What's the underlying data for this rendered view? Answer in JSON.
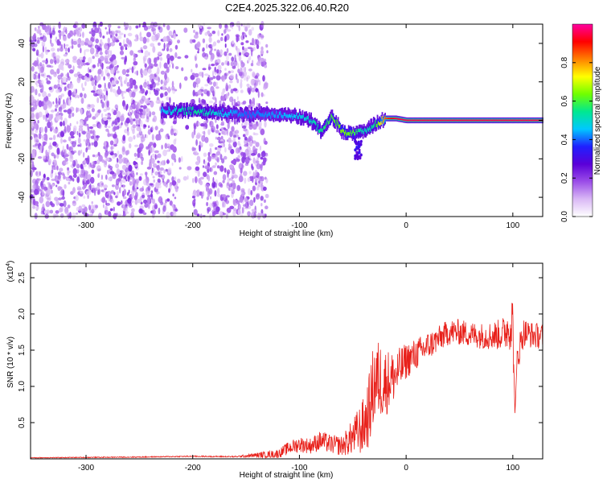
{
  "page_title": "C2E4.2025.322.06.40.R20",
  "chart_data": [
    {
      "type": "heatmap",
      "title": "C2E4.2025.322.06.40.R20",
      "xlabel": "Height of straight line (km)",
      "ylabel": "Frequency (Hz)",
      "xlim": [
        -352,
        128
      ],
      "ylim": [
        -50,
        50
      ],
      "xticks": [
        -300,
        -200,
        -100,
        0,
        100
      ],
      "yticks": [
        -40,
        -20,
        0,
        20,
        40
      ],
      "xtick_labels": [
        "-300",
        "-200",
        "-100",
        "0",
        "100"
      ],
      "ytick_labels": [
        "-40",
        "-20",
        "0",
        "20",
        "40"
      ],
      "grid": false,
      "colorbar": {
        "label": "Normalized spectral amplitude",
        "range": [
          0,
          1
        ],
        "ticks": [
          0.0,
          0.2,
          0.4,
          0.6,
          0.8
        ],
        "tick_labels": [
          "0.0",
          "0.2",
          "0.4",
          "0.6",
          "0.8"
        ],
        "colormap": [
          "#ffffff",
          "#d9b8f5",
          "#9b4de8",
          "#5a00d8",
          "#2020ff",
          "#00c8ff",
          "#00e890",
          "#70ff00",
          "#ffff00",
          "#ff8000",
          "#ff0000",
          "#ff00a0"
        ]
      },
      "signal_track": {
        "description_points_x": [
          -230,
          -200,
          -150,
          -110,
          -90,
          -80,
          -70,
          -60,
          -50,
          -40,
          -30,
          -20,
          -10,
          0,
          50,
          100,
          128
        ],
        "center_frequency_hz": [
          5,
          5,
          3,
          3,
          0,
          -6,
          2,
          -6,
          -7,
          -6,
          -2,
          1,
          1,
          0,
          0,
          0,
          0
        ],
        "peak_amplitude": [
          0.45,
          0.55,
          0.4,
          0.45,
          0.5,
          0.55,
          0.6,
          0.65,
          0.6,
          0.5,
          0.55,
          0.85,
          0.95,
          0.95,
          0.95,
          0.95,
          0.95
        ]
      },
      "colors": {
        "background": "#ffffff",
        "frame": "#000000"
      }
    },
    {
      "type": "line",
      "xlabel": "Height of straight line (km)",
      "ylabel": "SNR (10 * v/v)",
      "yscale_label": "(x10",
      "yscale_exponent": "4",
      "yscale_suffix": ")",
      "xlim": [
        -352,
        128
      ],
      "ylim": [
        0,
        27000
      ],
      "xticks": [
        -300,
        -200,
        -100,
        0,
        100
      ],
      "xtick_labels": [
        "-300",
        "-200",
        "-100",
        "0",
        "100"
      ],
      "yticks": [
        5000,
        10000,
        15000,
        20000,
        25000
      ],
      "ytick_labels": [
        "0.5",
        "1.0",
        "1.5",
        "2.0",
        "2.5"
      ],
      "grid": false,
      "series": [
        {
          "name": "SNR",
          "color": "#e8201a",
          "x": [
            -352,
            -300,
            -250,
            -200,
            -160,
            -120,
            -110,
            -100,
            -90,
            -80,
            -70,
            -60,
            -50,
            -40,
            -35,
            -30,
            -25,
            -20,
            -15,
            -10,
            -5,
            0,
            10,
            20,
            30,
            40,
            50,
            60,
            70,
            80,
            90,
            95,
            100,
            102,
            104,
            110,
            120,
            128
          ],
          "y": [
            150,
            200,
            250,
            350,
            300,
            700,
            1500,
            2000,
            1800,
            2500,
            2000,
            1800,
            3000,
            4500,
            6500,
            10500,
            11000,
            10500,
            11000,
            11500,
            12500,
            13500,
            14500,
            15500,
            16500,
            17500,
            17500,
            17200,
            17000,
            17000,
            17200,
            18000,
            19000,
            6000,
            14000,
            17500,
            17000,
            17000
          ],
          "noise": [
            50,
            60,
            70,
            80,
            90,
            600,
            900,
            1100,
            1100,
            1400,
            1300,
            1400,
            2500,
            4000,
            5000,
            6000,
            5500,
            5000,
            4000,
            3500,
            3000,
            2500,
            2200,
            2000,
            1800,
            1800,
            1800,
            1800,
            1800,
            2000,
            2200,
            3000,
            4000,
            4000,
            2500,
            2000,
            1800,
            1800
          ]
        }
      ],
      "colors": {
        "background": "#ffffff",
        "frame": "#000000"
      }
    }
  ]
}
